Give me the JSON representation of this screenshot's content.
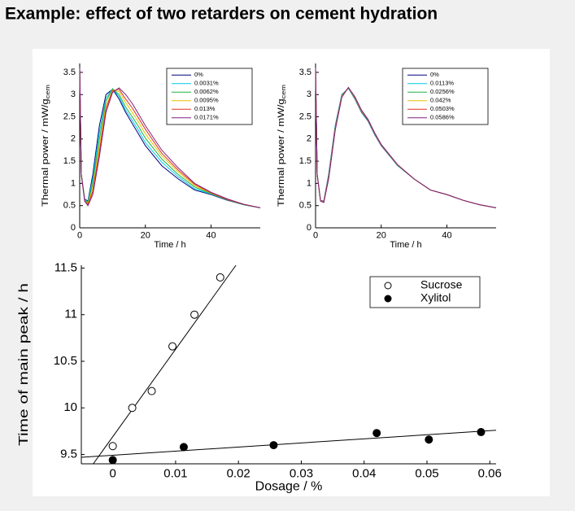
{
  "title": "Example: effect of two retarders on cement hydration",
  "chart_data": [
    {
      "type": "line",
      "xlabel": "Time / h",
      "ylabel": "Thermal power / mW/g",
      "ylabel_sub": "cem",
      "xlim": [
        0,
        55
      ],
      "ylim": [
        0,
        3.7
      ],
      "xticks": [
        0,
        20,
        40
      ],
      "yticks": [
        0,
        0.5,
        1,
        1.5,
        2,
        2.5,
        3,
        3.5
      ],
      "legend": "upper right",
      "x": [
        0,
        0.5,
        1.5,
        2.5,
        4,
        6,
        8,
        10,
        12,
        14,
        16,
        18,
        20,
        25,
        30,
        35,
        40,
        45,
        50,
        55
      ],
      "series": [
        {
          "name": "0%",
          "color": "#000080",
          "values": [
            3.6,
            1.2,
            0.65,
            0.6,
            1.2,
            2.3,
            3.0,
            3.12,
            2.9,
            2.6,
            2.35,
            2.1,
            1.85,
            1.4,
            1.1,
            0.85,
            0.75,
            0.62,
            0.52,
            0.45
          ]
        },
        {
          "name": "0.0031%",
          "color": "#00c8e8",
          "values": [
            3.6,
            1.2,
            0.64,
            0.58,
            1.1,
            2.15,
            2.92,
            3.13,
            2.95,
            2.65,
            2.42,
            2.18,
            1.92,
            1.48,
            1.15,
            0.88,
            0.76,
            0.63,
            0.52,
            0.45
          ]
        },
        {
          "name": "0.0062%",
          "color": "#20b040",
          "values": [
            3.6,
            1.2,
            0.63,
            0.56,
            1.0,
            2.0,
            2.85,
            3.13,
            3.0,
            2.72,
            2.5,
            2.27,
            2.02,
            1.55,
            1.2,
            0.92,
            0.77,
            0.63,
            0.52,
            0.45
          ]
        },
        {
          "name": "0.0095%",
          "color": "#e8c000",
          "values": [
            3.6,
            1.2,
            0.62,
            0.54,
            0.9,
            1.85,
            2.75,
            3.1,
            3.07,
            2.82,
            2.6,
            2.37,
            2.12,
            1.62,
            1.26,
            0.95,
            0.78,
            0.64,
            0.53,
            0.45
          ]
        },
        {
          "name": "0.013%",
          "color": "#e03020",
          "values": [
            3.6,
            1.2,
            0.61,
            0.52,
            0.82,
            1.72,
            2.68,
            3.08,
            3.12,
            2.9,
            2.7,
            2.46,
            2.22,
            1.68,
            1.3,
            0.98,
            0.79,
            0.64,
            0.53,
            0.45
          ]
        },
        {
          "name": "0.0171%",
          "color": "#802080",
          "values": [
            3.6,
            1.2,
            0.6,
            0.5,
            0.75,
            1.6,
            2.6,
            3.05,
            3.15,
            3.0,
            2.8,
            2.55,
            2.3,
            1.75,
            1.35,
            1.0,
            0.8,
            0.65,
            0.53,
            0.45
          ]
        }
      ]
    },
    {
      "type": "line",
      "xlabel": "Time / h",
      "ylabel": "Thermal power / mW/g",
      "ylabel_sub": "cem",
      "xlim": [
        0,
        55
      ],
      "ylim": [
        0,
        3.7
      ],
      "xticks": [
        0,
        20,
        40
      ],
      "yticks": [
        0,
        0.5,
        1,
        1.5,
        2,
        2.5,
        3,
        3.5
      ],
      "legend": "upper right",
      "x": [
        0,
        0.5,
        1.5,
        2.5,
        4,
        6,
        8,
        10,
        12,
        14,
        16,
        18,
        20,
        25,
        30,
        35,
        40,
        45,
        50,
        55
      ],
      "series": [
        {
          "name": "0%",
          "color": "#000080",
          "values": [
            3.6,
            1.2,
            0.62,
            0.6,
            1.2,
            2.3,
            3.0,
            3.14,
            2.9,
            2.6,
            2.4,
            2.1,
            1.85,
            1.4,
            1.1,
            0.85,
            0.75,
            0.62,
            0.52,
            0.45
          ]
        },
        {
          "name": "0.0113%",
          "color": "#00c8e8",
          "values": [
            3.6,
            1.2,
            0.62,
            0.59,
            1.18,
            2.28,
            2.99,
            3.14,
            2.91,
            2.61,
            2.41,
            2.11,
            1.86,
            1.4,
            1.1,
            0.85,
            0.75,
            0.62,
            0.52,
            0.45
          ]
        },
        {
          "name": "0.0256%",
          "color": "#20b040",
          "values": [
            3.6,
            1.2,
            0.62,
            0.59,
            1.16,
            2.26,
            2.98,
            3.15,
            2.92,
            2.62,
            2.42,
            2.12,
            1.86,
            1.41,
            1.1,
            0.85,
            0.75,
            0.62,
            0.52,
            0.45
          ]
        },
        {
          "name": "0.042%",
          "color": "#e8c000",
          "values": [
            3.6,
            1.2,
            0.61,
            0.58,
            1.13,
            2.23,
            2.96,
            3.15,
            2.93,
            2.63,
            2.43,
            2.13,
            1.87,
            1.41,
            1.1,
            0.85,
            0.75,
            0.62,
            0.52,
            0.45
          ]
        },
        {
          "name": "0.0503%",
          "color": "#e03020",
          "values": [
            3.6,
            1.2,
            0.61,
            0.58,
            1.12,
            2.22,
            2.95,
            3.16,
            2.94,
            2.64,
            2.43,
            2.13,
            1.87,
            1.42,
            1.1,
            0.85,
            0.75,
            0.62,
            0.52,
            0.45
          ]
        },
        {
          "name": "0.0586%",
          "color": "#802080",
          "values": [
            3.6,
            1.2,
            0.6,
            0.57,
            1.1,
            2.2,
            2.94,
            3.16,
            2.95,
            2.65,
            2.44,
            2.14,
            1.88,
            1.42,
            1.1,
            0.85,
            0.75,
            0.62,
            0.52,
            0.45
          ]
        }
      ]
    },
    {
      "type": "scatter",
      "xlabel": "Dosage / %",
      "ylabel": "Time of main peak / h",
      "xlim": [
        -0.005,
        0.061
      ],
      "ylim": [
        9.4,
        11.53
      ],
      "xticks": [
        0,
        0.01,
        0.02,
        0.03,
        0.04,
        0.05,
        0.06
      ],
      "yticks": [
        9.5,
        10,
        10.5,
        11,
        11.5
      ],
      "legend": "upper right",
      "series": [
        {
          "name": "Sucrose",
          "marker": "open",
          "color": "#000000",
          "x": [
            0,
            0.0031,
            0.0062,
            0.0095,
            0.013,
            0.0171
          ],
          "values": [
            9.59,
            10.0,
            10.18,
            10.66,
            11.0,
            11.4
          ],
          "trend": {
            "x": [
              -0.0031,
              0.0196
            ],
            "y": [
              9.4,
              11.53
            ]
          }
        },
        {
          "name": "Xylitol",
          "marker": "filled",
          "color": "#000000",
          "x": [
            0,
            0.0113,
            0.0256,
            0.042,
            0.0503,
            0.0586
          ],
          "values": [
            9.44,
            9.58,
            9.6,
            9.73,
            9.66,
            9.74
          ],
          "trend": {
            "x": [
              -0.005,
              0.061
            ],
            "y": [
              9.47,
              9.76
            ]
          }
        }
      ]
    }
  ]
}
